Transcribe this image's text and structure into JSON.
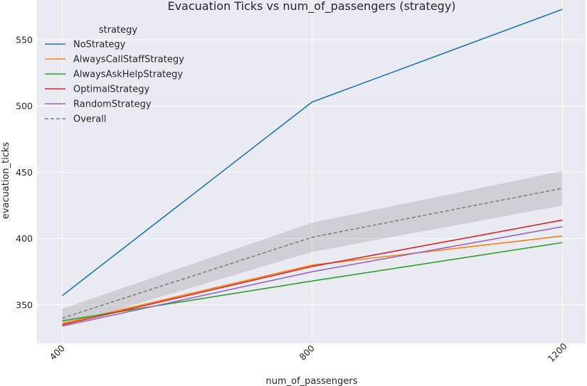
{
  "chart_data": {
    "type": "line",
    "title": "Evacuation Ticks vs num_of_passengers (strategy)",
    "xlabel": "num_of_passengers",
    "ylabel": "evacuation_ticks",
    "x": [
      400,
      800,
      1200
    ],
    "x_tick_labels": [
      "400",
      "800",
      "1200"
    ],
    "y_ticks": [
      350,
      400,
      450,
      500,
      550
    ],
    "y_tick_labels": [
      "350",
      "400",
      "450",
      "500",
      "550"
    ],
    "ylim": [
      321,
      580
    ],
    "grid": true,
    "legend": {
      "title": "strategy",
      "position": "top-left"
    },
    "series": [
      {
        "name": "NoStrategy",
        "values": [
          357,
          503,
          573
        ],
        "color": "#1f77b4",
        "dashed": false
      },
      {
        "name": "AlwaysCallStaffStrategy",
        "values": [
          336,
          380,
          402
        ],
        "color": "#ff7f0e",
        "dashed": false
      },
      {
        "name": "AlwaysAskHelpStrategy",
        "values": [
          338,
          368,
          397
        ],
        "color": "#2ca02c",
        "dashed": false
      },
      {
        "name": "OptimalStrategy",
        "values": [
          335,
          379,
          414
        ],
        "color": "#d62728",
        "dashed": false
      },
      {
        "name": "RandomStrategy",
        "values": [
          334,
          375,
          409
        ],
        "color": "#9467bd",
        "dashed": false
      },
      {
        "name": "Overall",
        "values": [
          340,
          401,
          438
        ],
        "color": "#808080",
        "dashed": true,
        "ci_lower": [
          334,
          390,
          425
        ],
        "ci_upper": [
          347,
          412,
          451
        ]
      }
    ]
  }
}
